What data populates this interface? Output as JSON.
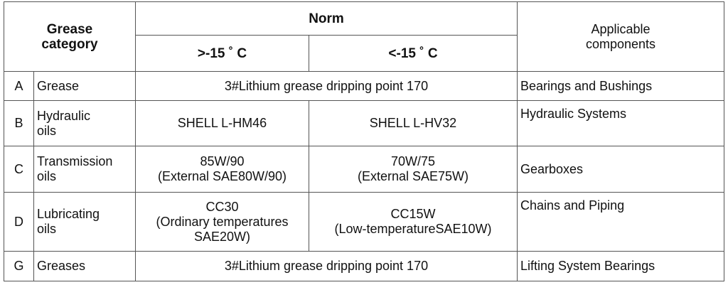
{
  "header": {
    "category": [
      "Grease",
      "category"
    ],
    "norm": "Norm",
    "above": ">-15 ˚ C",
    "below": "<-15 ˚ C",
    "components": [
      "Applicable",
      "components"
    ]
  },
  "rows": [
    {
      "code": "A",
      "name": [
        "Grease"
      ],
      "norm": [
        "3#Lithium grease dripping point 170"
      ],
      "components": "Bearings and Bushings"
    },
    {
      "code": "B",
      "name": [
        "Hydraulic",
        "oils"
      ],
      "above": [
        "SHELL L-HM46"
      ],
      "below": [
        "SHELL L-HV32"
      ],
      "components": "Hydraulic Systems"
    },
    {
      "code": "C",
      "name": [
        "Transmission",
        "oils"
      ],
      "above": [
        "85W/90",
        "(External SAE80W/90)"
      ],
      "below": [
        "70W/75",
        "(External SAE75W)"
      ],
      "components": "Gearboxes"
    },
    {
      "code": "D",
      "name": [
        "Lubricating",
        "oils"
      ],
      "above": [
        "CC30",
        "(Ordinary temperatures",
        "SAE20W)"
      ],
      "below": [
        "CC15W",
        "(Low-temperatureSAE10W)"
      ],
      "components": "Chains and Piping"
    },
    {
      "code": "G",
      "name": [
        "Greases"
      ],
      "norm": [
        "3#Lithium grease dripping point 170"
      ],
      "components": "Lifting System Bearings"
    }
  ]
}
